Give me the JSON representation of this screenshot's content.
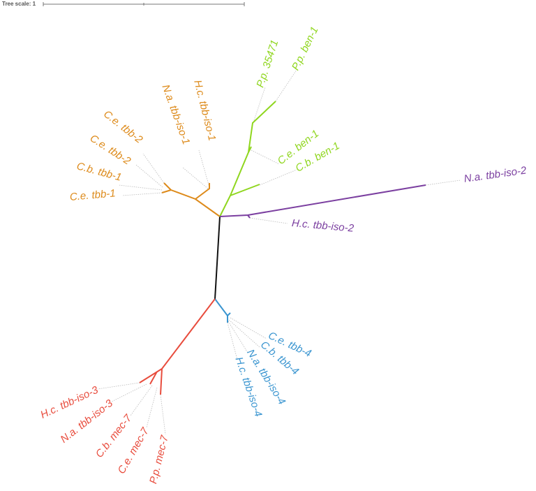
{
  "scale": {
    "label": "Tree scale: 1"
  },
  "leaves": [
    {
      "label": "C.e. tbb-2"
    },
    {
      "label": "C.e. tbb-2"
    },
    {
      "label": "C.b. tbb-1"
    },
    {
      "label": "C.e. tbb-1"
    },
    {
      "label": "N.a. tbb-iso-1"
    },
    {
      "label": "H.c. tbb-iso-1"
    },
    {
      "label": "P.p. 35471"
    },
    {
      "label": "P.p. ben-1"
    },
    {
      "label": "C.e. ben-1"
    },
    {
      "label": "C.b. ben-1"
    },
    {
      "label": "N.a. tbb-iso-2"
    },
    {
      "label": "H.c. tbb-iso-2"
    },
    {
      "label": "C.e. tbb-4"
    },
    {
      "label": "C.b. tbb-4"
    },
    {
      "label": "N.a. tbb-iso-4"
    },
    {
      "label": "H.c. tbb-iso-4"
    },
    {
      "label": "H.c. tbb-iso-3"
    },
    {
      "label": "N.a. tbb-iso-3"
    },
    {
      "label": "C.b. mec-7"
    },
    {
      "label": "C.e. mec-7"
    },
    {
      "label": "P.p. mec-7"
    }
  ]
}
